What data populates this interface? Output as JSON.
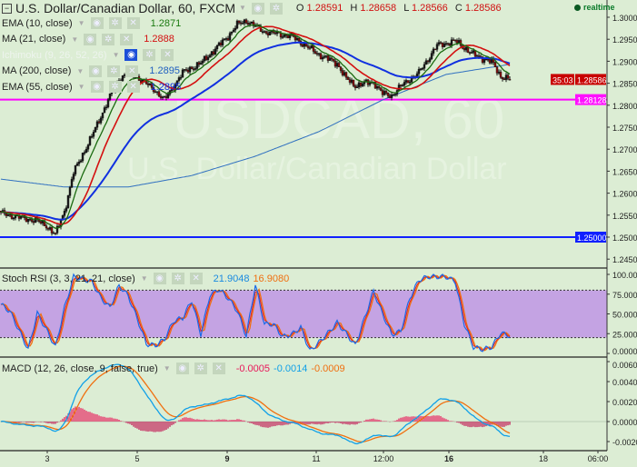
{
  "header": {
    "title": "U.S. Dollar/Canadian Dollar, 60, FXCM",
    "o_label": "O",
    "o": "1.28591",
    "h_label": "H",
    "h": "1.28658",
    "l_label": "L",
    "l": "1.28566",
    "c_label": "C",
    "c": "1.28586",
    "realtime": "realtime"
  },
  "watermark": {
    "symbol": "USDCAD, 60",
    "name": "U.S. Dollar/Canadian Dollar"
  },
  "indicators": [
    {
      "label": "EMA (10, close)",
      "value": "1.2871",
      "color": "#1a7a10"
    },
    {
      "label": "MA (21, close)",
      "value": "1.2888",
      "color": "#d41010"
    },
    {
      "label": "Ichimoku (9, 26, 52, 26)",
      "value": "",
      "color": "#c8d8c8",
      "hidden": true
    },
    {
      "label": "MA (200, close)",
      "value": "1.2895",
      "color": "#2060c0"
    },
    {
      "label": "EMA (55, close)",
      "value": "1.2895",
      "color": "#1030e0"
    }
  ],
  "stoch": {
    "label": "Stoch RSI (3, 3, 21, 21, close)",
    "k": "21.9048",
    "d": "16.9080",
    "k_color": "#1a8ae0",
    "d_color": "#f07010"
  },
  "macd": {
    "label": "MACD (12, 26, close, 9, false, true)",
    "hist": "-0.0005",
    "macd": "-0.0014",
    "signal": "-0.0009",
    "hist_color": "#e8185a",
    "macd_color": "#10a0e8",
    "signal_color": "#f07010"
  },
  "price_axis": {
    "ticks": [
      "1.30000",
      "1.29500",
      "1.29000",
      "1.28500",
      "1.28000",
      "1.27500",
      "1.27000",
      "1.26500",
      "1.26000",
      "1.25500",
      "1.25000",
      "1.24500"
    ],
    "last_price": "1.28586",
    "countdown": "35:03",
    "magenta_line": "1.28128",
    "blue_line": "1.25000"
  },
  "stoch_axis": {
    "ticks": [
      "100.0000",
      "75.0000",
      "50.0000",
      "25.0000",
      "0.0000"
    ]
  },
  "macd_axis": {
    "ticks": [
      "0.0060",
      "0.0040",
      "0.0020",
      "0.0000",
      "-0.0020"
    ]
  },
  "time_axis": {
    "ticks": [
      "3",
      "5",
      "9",
      "11",
      "12:00",
      "16",
      "18",
      "06:00"
    ]
  },
  "chart_data": {
    "type": "candlestick",
    "interval": "60",
    "close_samples": [
      1.2554,
      1.255,
      1.2545,
      1.2541,
      1.2537,
      1.2526,
      1.2506,
      1.2559,
      1.2647,
      1.2688,
      1.2729,
      1.2775,
      1.282,
      1.286,
      1.2873,
      1.2864,
      1.2849,
      1.2833,
      1.2812,
      1.2843,
      1.2874,
      1.2885,
      1.2895,
      1.2916,
      1.2936,
      1.2957,
      1.2983,
      1.2992,
      1.298,
      1.2967,
      1.2964,
      1.296,
      1.2957,
      1.2943,
      1.2929,
      1.2915,
      1.2905,
      1.2895,
      1.286,
      1.2845,
      1.2849,
      1.2853,
      1.2826,
      1.2822,
      1.2843,
      1.2859,
      1.2874,
      1.2905,
      1.2936,
      1.2941,
      1.2946,
      1.2931,
      1.2915,
      1.2907,
      1.2899,
      1.2866,
      1.28586
    ],
    "ma200_samples": [
      1.2632,
      1.2614,
      1.2614,
      1.264,
      1.2684,
      1.274,
      1.2812,
      1.287,
      1.2893
    ],
    "stoch_k_samples": [
      62,
      53,
      29,
      5,
      51,
      30,
      8,
      58,
      97,
      94,
      91,
      70,
      58,
      86,
      73,
      44,
      12,
      10,
      18,
      41,
      45,
      67,
      24,
      74,
      81,
      70,
      54,
      22,
      87,
      37,
      37,
      21,
      24,
      33,
      3,
      14,
      26,
      39,
      25,
      10,
      44,
      79,
      50,
      24,
      28,
      70,
      93,
      97,
      97,
      97,
      91,
      37,
      8,
      5,
      8,
      26,
      22
    ],
    "price_range": [
      1.2435,
      1.304
    ],
    "stoch_range": [
      0,
      100
    ],
    "stoch_band": [
      20,
      80
    ],
    "macd_range": [
      -0.0027,
      0.0062
    ],
    "horizontal_lines": [
      {
        "price": 1.28128,
        "color": "#ff00ff"
      },
      {
        "price": 1.25,
        "color": "#1020ff"
      }
    ]
  }
}
